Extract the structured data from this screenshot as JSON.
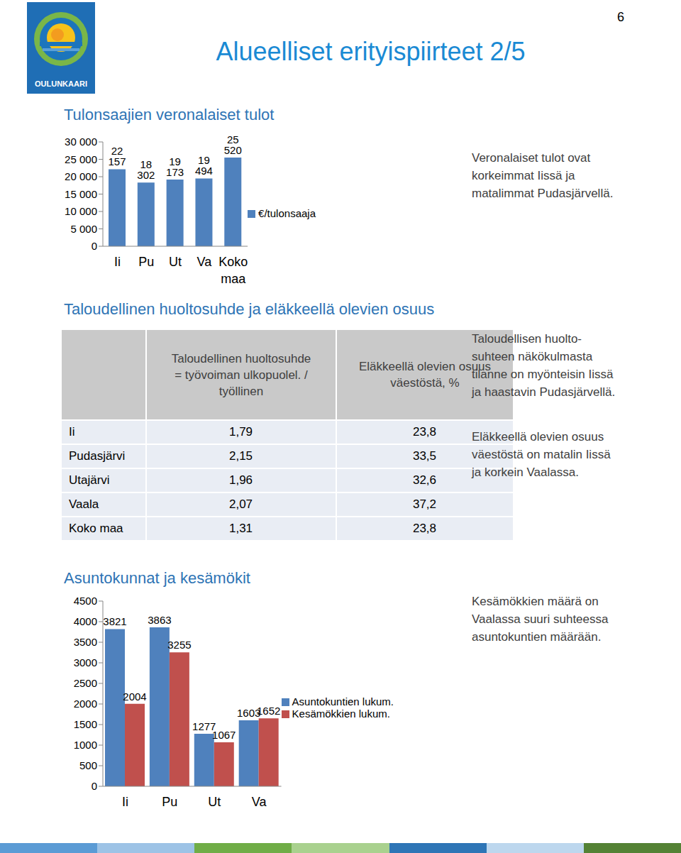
{
  "title": "Alueelliset erityispiirteet 2/5",
  "page_number": "6",
  "logo_text": "OULUNKAARI",
  "chart_data": [
    {
      "type": "bar",
      "title": "Tulonsaajien veronalaiset tulot",
      "categories": [
        "Ii",
        "Pu",
        "Ut",
        "Va",
        "Koko maa"
      ],
      "series": [
        {
          "name": "€/tulonsaaja",
          "color": "#4f81bd",
          "values": [
            22157,
            18302,
            19173,
            19494,
            25520
          ],
          "value_labels": [
            "22 157",
            "18 302",
            "19 173",
            "19 494",
            "25 520"
          ]
        }
      ],
      "ylim": [
        0,
        30000
      ],
      "yticks": [
        0,
        {
          "value": 5000,
          "label": "5 000"
        },
        {
          "value": 10000,
          "label": "10 000"
        },
        {
          "value": 15000,
          "label": "15 000"
        },
        {
          "value": 20000,
          "label": "20 000"
        },
        {
          "value": 25000,
          "label": "25 000"
        },
        {
          "value": 30000,
          "label": "30 000"
        }
      ],
      "grid": false,
      "legend": "right",
      "data_labels": true,
      "annotation": "Veronalaiset tulot ovat korkeimmat Iissä ja matalimmat Pudasjärvellä."
    },
    {
      "type": "bar",
      "title": "Asuntokunnat ja kesämökit",
      "categories": [
        "Ii",
        "Pu",
        "Ut",
        "Va"
      ],
      "series": [
        {
          "name": "Asuntokuntien lukum.",
          "color": "#4f81bd",
          "values": [
            3821,
            3863,
            1277,
            1603
          ]
        },
        {
          "name": "Kesämökkien lukum.",
          "color": "#c0504d",
          "values": [
            2004,
            3255,
            1067,
            1652
          ]
        }
      ],
      "ylim": [
        0,
        4500
      ],
      "yticks": [
        0,
        500,
        1000,
        1500,
        2000,
        2500,
        3000,
        3500,
        4000,
        4500
      ],
      "grid": false,
      "legend": "right",
      "data_labels": true,
      "annotation": "Kesämökkien määrä on Vaalassa suuri suhteessa asuntokuntien määrään."
    }
  ],
  "table": {
    "title": "Taloudellinen huoltosuhde ja eläkkeellä olevien osuus",
    "header": [
      "Taloudellinen huoltosuhde = työvoiman ulkopuolel. / työllinen",
      "Eläkkeellä olevien osuus väestöstä, %"
    ],
    "rows": [
      [
        "Ii",
        "1,79",
        "23,8"
      ],
      [
        "Pudasjärvi",
        "2,15",
        "33,5"
      ],
      [
        "Utajärvi",
        "1,96",
        "32,6"
      ],
      [
        "Vaala",
        "2,07",
        "37,2"
      ],
      [
        "Koko maa",
        "1,31",
        "23,8"
      ]
    ],
    "notes": [
      [
        "Taloudellisen huolto-",
        "suhteen näkökulmasta",
        "tilanne on myönteisin Iissä",
        "ja haastavin Pudasjärvellä."
      ],
      [
        "Eläkkeellä olevien osuus",
        "väestöstä on matalin Iissä",
        "ja korkein Vaalassa."
      ]
    ]
  }
}
